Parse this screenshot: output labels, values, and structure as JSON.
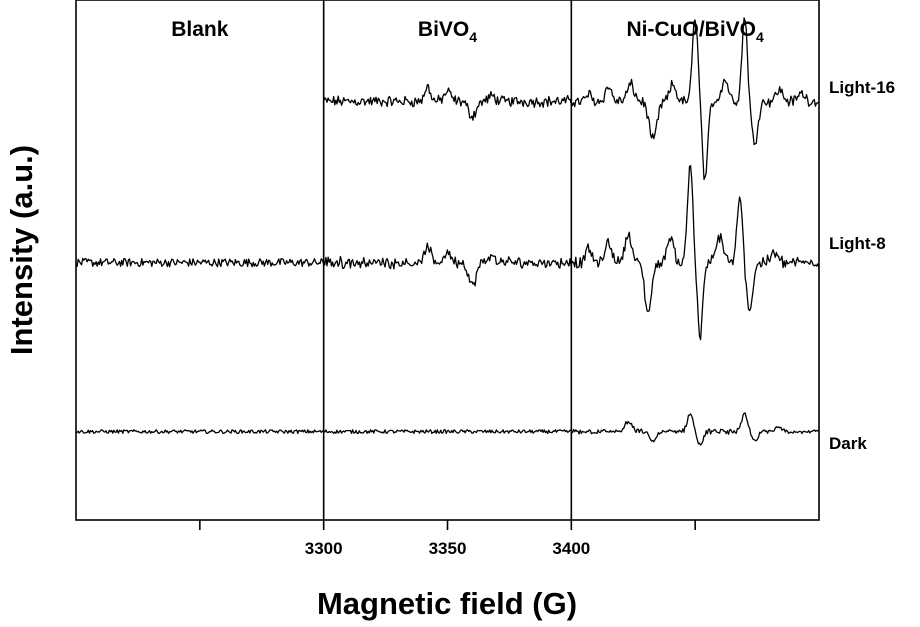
{
  "chart_data": {
    "type": "line",
    "xlabel": "Magnetic field (G)",
    "ylabel": "Intensity (a.u.)",
    "panels": [
      {
        "title_main": "Blank",
        "title_sub": "",
        "x_start": 3200,
        "x_end": 3300
      },
      {
        "title_main": "BiVO",
        "title_sub": "4",
        "x_start": 3300,
        "x_end": 3400
      },
      {
        "title_main": "Ni-CuO/BiVO",
        "title_sub": "4",
        "x_start": 3400,
        "x_end": 3500
      }
    ],
    "x_ticks": [
      {
        "value": 3300,
        "label": "3300"
      },
      {
        "value": 3350,
        "label": "3350"
      },
      {
        "value": 3400,
        "label": "3400"
      }
    ],
    "minor_tick_values": [
      3250,
      3450
    ],
    "xlim": [
      3200,
      3500
    ],
    "ylim": [
      0,
      100
    ],
    "series": [
      {
        "name": "Light-16",
        "baseline": 80.5,
        "noise": 0.8,
        "segments": [
          {
            "x_start": 3300,
            "x_end": 3400,
            "features": [
              {
                "center": 3342,
                "amp": 2.8,
                "width": 1.6
              },
              {
                "center": 3350,
                "amp": 1.8,
                "width": 2.0
              },
              {
                "center": 3360,
                "amp": -2.8,
                "width": 2.2
              },
              {
                "center": 3368,
                "amp": 1.0,
                "width": 2.0
              }
            ]
          },
          {
            "x_start": 3400,
            "x_end": 3500,
            "features": [
              {
                "center": 3407,
                "amp": 1.4,
                "width": 1.5
              },
              {
                "center": 3415,
                "amp": 2.8,
                "width": 1.8
              },
              {
                "center": 3424,
                "amp": 3.2,
                "width": 2.0
              },
              {
                "center": 3433,
                "amp": -7.5,
                "width": 2.2
              },
              {
                "center": 3441,
                "amp": 3.2,
                "width": 1.8
              },
              {
                "center": 3450,
                "amp": 16.5,
                "width": 1.5
              },
              {
                "center": 3454,
                "amp": -15.5,
                "width": 1.5
              },
              {
                "center": 3462,
                "amp": 4.2,
                "width": 2.0
              },
              {
                "center": 3470,
                "amp": 16.5,
                "width": 1.5
              },
              {
                "center": 3474,
                "amp": -8.0,
                "width": 1.8
              },
              {
                "center": 3484,
                "amp": 2.2,
                "width": 2.0
              },
              {
                "center": 3493,
                "amp": 1.6,
                "width": 2.0
              }
            ]
          }
        ]
      },
      {
        "name": "Light-8",
        "baseline": 49.5,
        "noise": 0.8,
        "segments": [
          {
            "x_start": 3200,
            "x_end": 3300,
            "features": []
          },
          {
            "x_start": 3300,
            "x_end": 3400,
            "features": [
              {
                "center": 3342,
                "amp": 3.0,
                "width": 1.6
              },
              {
                "center": 3350,
                "amp": 2.0,
                "width": 2.0
              },
              {
                "center": 3360,
                "amp": -4.5,
                "width": 2.2
              },
              {
                "center": 3368,
                "amp": 1.2,
                "width": 2.0
              }
            ]
          },
          {
            "x_start": 3400,
            "x_end": 3500,
            "features": [
              {
                "center": 3407,
                "amp": 2.8,
                "width": 1.5
              },
              {
                "center": 3415,
                "amp": 4.0,
                "width": 1.8
              },
              {
                "center": 3423,
                "amp": 5.5,
                "width": 2.0
              },
              {
                "center": 3431,
                "amp": -9.5,
                "width": 2.0
              },
              {
                "center": 3440,
                "amp": 5.0,
                "width": 1.8
              },
              {
                "center": 3448,
                "amp": 19.5,
                "width": 1.5
              },
              {
                "center": 3452,
                "amp": -14.5,
                "width": 1.5
              },
              {
                "center": 3460,
                "amp": 5.0,
                "width": 2.0
              },
              {
                "center": 3468,
                "amp": 12.5,
                "width": 1.5
              },
              {
                "center": 3472,
                "amp": -9.0,
                "width": 1.8
              },
              {
                "center": 3482,
                "amp": 2.0,
                "width": 2.0
              }
            ]
          }
        ]
      },
      {
        "name": "Dark",
        "baseline": 17.0,
        "noise": 0.35,
        "segments": [
          {
            "x_start": 3200,
            "x_end": 3300,
            "features": []
          },
          {
            "x_start": 3300,
            "x_end": 3400,
            "features": []
          },
          {
            "x_start": 3400,
            "x_end": 3500,
            "features": [
              {
                "center": 3423,
                "amp": 1.8,
                "width": 2.0
              },
              {
                "center": 3433,
                "amp": -1.8,
                "width": 2.0
              },
              {
                "center": 3448,
                "amp": 3.6,
                "width": 1.6
              },
              {
                "center": 3452,
                "amp": -2.6,
                "width": 1.6
              },
              {
                "center": 3470,
                "amp": 3.4,
                "width": 1.6
              },
              {
                "center": 3474,
                "amp": -1.8,
                "width": 1.8
              },
              {
                "center": 3484,
                "amp": 1.0,
                "width": 2.0
              }
            ]
          }
        ]
      }
    ]
  }
}
